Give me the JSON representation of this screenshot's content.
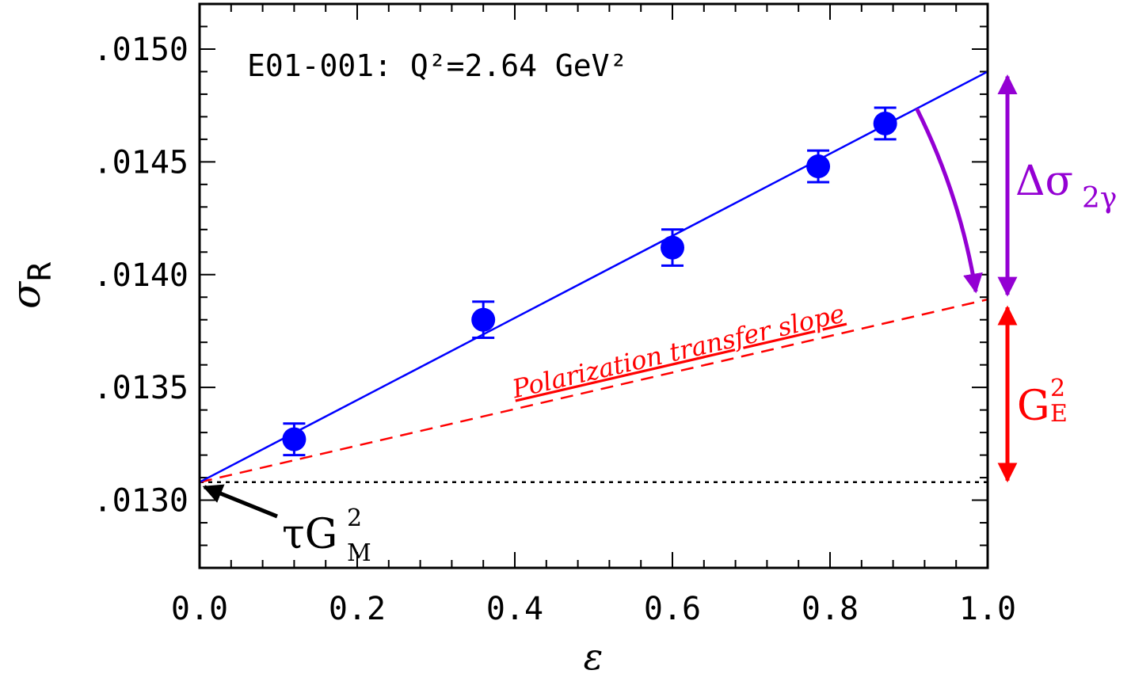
{
  "chart_data": {
    "type": "scatter",
    "title": "E01-001: Q²=2.64 GeV²",
    "xlabel": "ε",
    "ylabel": "σ",
    "ylabel_sub": "R",
    "xlim": [
      0.0,
      1.0
    ],
    "ylim": [
      0.0127,
      0.0152
    ],
    "xticks": [
      "0.0",
      "0.2",
      "0.4",
      "0.6",
      "0.8",
      "1.0"
    ],
    "yticks": [
      ".0130",
      ".0135",
      ".0140",
      ".0145",
      ".0150"
    ],
    "grid": false,
    "points": {
      "color": "#0000ff",
      "x": [
        0.12,
        0.36,
        0.6,
        0.785,
        0.87
      ],
      "y": [
        0.01327,
        0.0138,
        0.01412,
        0.01448,
        0.01467
      ],
      "err": [
        7e-05,
        8e-05,
        8e-05,
        7e-05,
        7e-05
      ]
    },
    "fit_line": {
      "color": "#0000ff",
      "x": [
        0.0,
        1.0
      ],
      "y": [
        0.01308,
        0.0149
      ]
    },
    "pt_line": {
      "color": "#ff0000",
      "label": "Polarization transfer slope",
      "x": [
        0.0,
        1.0
      ],
      "y": [
        0.01308,
        0.01389
      ]
    },
    "baseline": {
      "color": "#000000",
      "y": 0.01308
    },
    "annotations": {
      "tau_gm": {
        "text": "τG",
        "sup": "2",
        "sub": "M",
        "color": "#000000"
      },
      "delta_sigma": {
        "text": "Δσ",
        "sub": "2γ",
        "color": "#9400d3",
        "y_top": 0.0149,
        "y_bottom": 0.01389
      },
      "ge": {
        "text": "G",
        "sup": "2",
        "sub": "E",
        "color": "#ff0000",
        "y_top": 0.01389,
        "y_bottom": 0.01308
      }
    }
  }
}
